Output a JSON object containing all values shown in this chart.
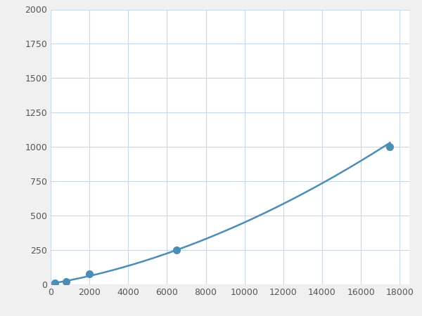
{
  "x": [
    200,
    800,
    2000,
    6500,
    17500
  ],
  "y": [
    10,
    20,
    75,
    250,
    1000
  ],
  "line_color": "#4a8db5",
  "marker_color": "#4a8db5",
  "marker_size": 7,
  "line_width": 1.8,
  "xlim": [
    0,
    18500
  ],
  "ylim": [
    0,
    2000
  ],
  "xticks": [
    0,
    2000,
    4000,
    6000,
    8000,
    10000,
    12000,
    14000,
    16000,
    18000
  ],
  "yticks": [
    0,
    250,
    500,
    750,
    1000,
    1250,
    1500,
    1750,
    2000
  ],
  "grid_color": "#c8d8e8",
  "plot_background": "#ffffff",
  "figure_background": "#f0f0f0",
  "tick_color": "#555555",
  "tick_fontsize": 9
}
